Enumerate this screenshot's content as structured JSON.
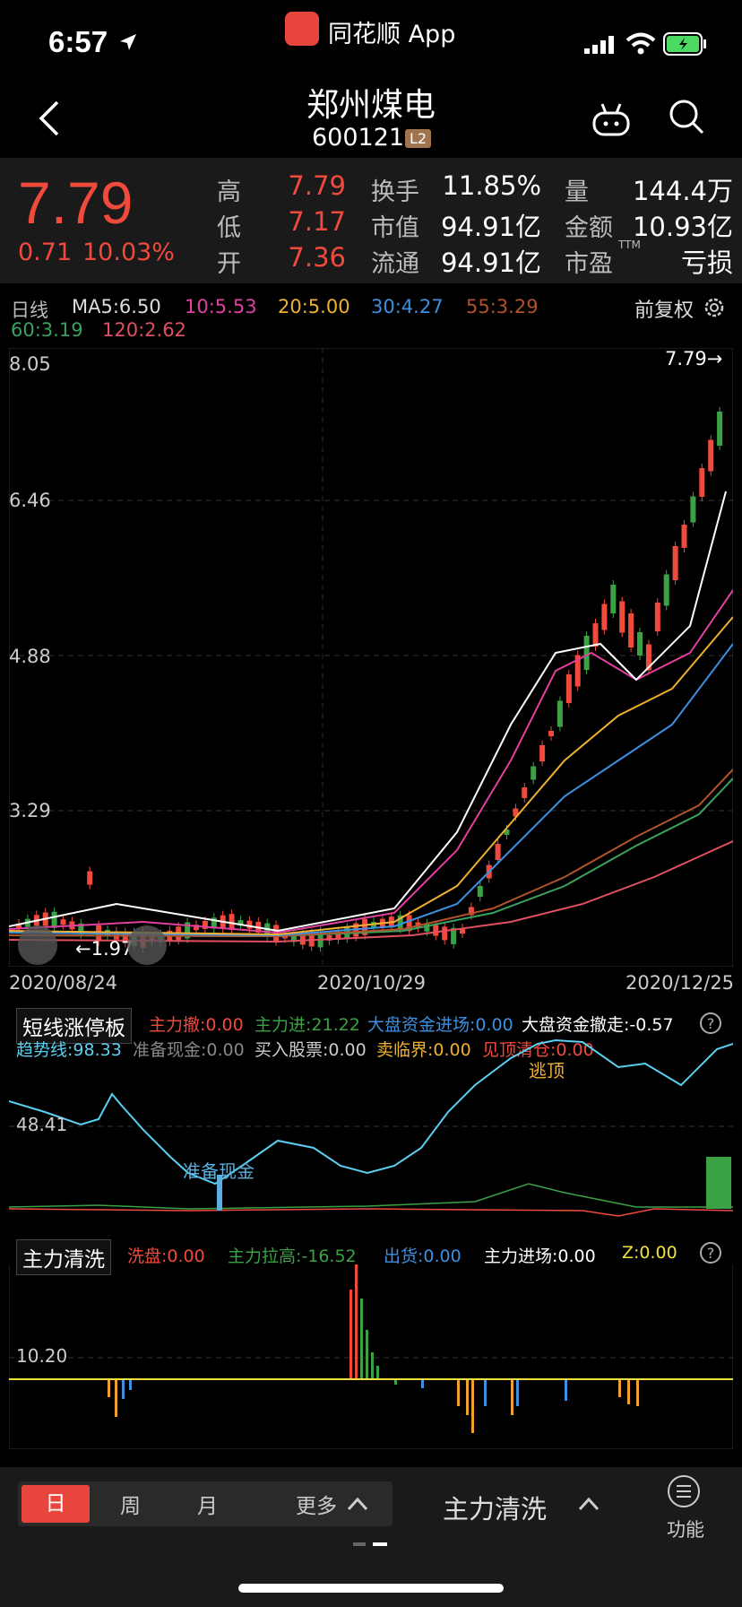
{
  "status": {
    "time": "6:57",
    "app_name": "同花顺 App"
  },
  "header": {
    "title": "郑州煤电",
    "code": "600121",
    "level": "L2"
  },
  "quote": {
    "price": "7.79",
    "change": "0.71",
    "change_pct": "10.03%",
    "high_label": "高",
    "high": "7.79",
    "low_label": "低",
    "low": "7.17",
    "open_label": "开",
    "open": "7.36",
    "turnover_label": "换手",
    "turnover": "11.85%",
    "mktcap_label": "市值",
    "mktcap": "94.91亿",
    "float_label": "流通",
    "float": "94.91亿",
    "volume_label": "量",
    "volume": "144.4万",
    "amount_label": "金额",
    "amount": "10.93亿",
    "pe_label": "市盈",
    "pe_sup": "TTM",
    "pe": "亏损"
  },
  "ma": {
    "period": "日线",
    "ma5": "MA5:6.50",
    "ma10": "10:5.53",
    "ma20": "20:5.00",
    "ma30": "30:4.27",
    "ma55": "55:3.29",
    "ma60": "60:3.19",
    "ma120": "120:2.62",
    "adjust": "前复权"
  },
  "chart_axis": {
    "y_ticks": [
      "8.05",
      "6.46",
      "4.88",
      "3.29"
    ],
    "max_label": "7.79→",
    "min_label": "←1.97",
    "dates": [
      "2020/08/24",
      "2020/10/29",
      "2020/12/25"
    ]
  },
  "sub1": {
    "title": "短线涨停板",
    "l1": "主力撤:0.00",
    "l2": "主力进:21.22",
    "l3": "大盘资金进场:0.00",
    "l4": "大盘资金撤走:-0.57",
    "l5": "趋势线:98.33",
    "l6": "准备现金:0.00",
    "l7": "买入股票:0.00",
    "l8": "卖临界:0.00",
    "l9": "见顶清仓:0.00",
    "tick": "48.41",
    "ann1": "准备现金",
    "ann2": "逃顶"
  },
  "sub2": {
    "title": "主力清洗",
    "l1": "洗盘:0.00",
    "l2": "主力拉高:-16.52",
    "l3": "出货:0.00",
    "l4": "主力进场:0.00",
    "l5": "Z:0.00",
    "tick": "10.20"
  },
  "bottom": {
    "tab_day": "日",
    "tab_week": "周",
    "tab_month": "月",
    "tab_more": "更多",
    "indicator": "主力清洗",
    "func": "功能"
  },
  "colors": {
    "up": "#f04a3d",
    "down": "#3aa245",
    "ma5": "#ffffff",
    "ma10": "#e040a0",
    "ma20": "#f0b030",
    "ma30": "#3d8fe0"
  },
  "chart_data": {
    "type": "candlestick",
    "x_range": [
      "2020/08/24",
      "2020/12/25"
    ],
    "ylim": [
      1.97,
      8.05
    ],
    "last_close": 7.79
  }
}
